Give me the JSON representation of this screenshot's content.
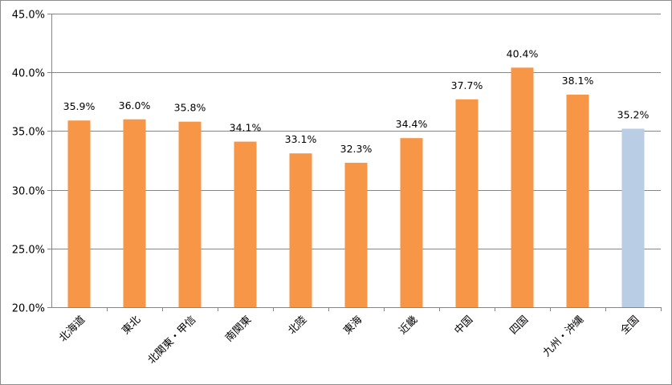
{
  "chart_data": {
    "type": "bar",
    "categories": [
      "北海道",
      "東北",
      "北関東・甲信",
      "南関東",
      "北陸",
      "東海",
      "近畿",
      "中国",
      "四国",
      "九州・沖縄",
      "全国"
    ],
    "values": [
      35.9,
      36.0,
      35.8,
      34.1,
      33.1,
      32.3,
      34.4,
      37.7,
      40.4,
      38.1,
      35.2
    ],
    "data_labels": [
      "35.9%",
      "36.0%",
      "35.8%",
      "34.1%",
      "33.1%",
      "32.3%",
      "34.4%",
      "37.7%",
      "40.4%",
      "38.1%",
      "35.2%"
    ],
    "ylim": [
      20,
      45
    ],
    "yticks": [
      20,
      25,
      30,
      35,
      40,
      45
    ],
    "ytick_labels": [
      "20.0%",
      "25.0%",
      "30.0%",
      "35.0%",
      "40.0%",
      "45.0%"
    ],
    "colors": {
      "bar": "#F79646",
      "highlight_bar": "#B9CDE5",
      "gridline": "#868686",
      "axis": "#868686"
    },
    "highlight_category": "全国",
    "grid": true,
    "legend": "none",
    "title": "",
    "xlabel": "",
    "ylabel": ""
  }
}
